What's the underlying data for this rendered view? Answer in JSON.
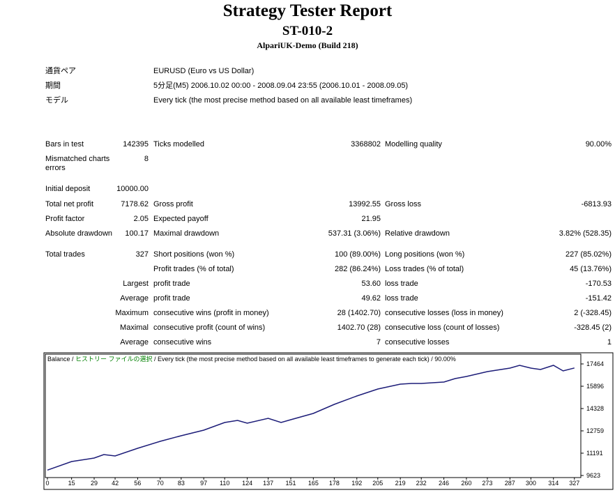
{
  "header": {
    "title": "Strategy Tester Report",
    "subtitle": "ST-010-2",
    "server": "AlpariUK-Demo (Build 218)"
  },
  "info": [
    [
      "通貨ペア",
      "EURUSD (Euro vs US Dollar)"
    ],
    [
      "期間",
      "5分足(M5) 2006.10.02 00:00 - 2008.09.04 23:55 (2006.10.01 - 2008.09.05)"
    ],
    [
      "モデル",
      "Every tick (the most precise method based on all available least timeframes)"
    ]
  ],
  "table": {
    "rows": [
      [
        "Bars in test",
        "142395",
        "Ticks modelled",
        "3368802",
        "Modelling quality",
        "90.00%"
      ],
      [
        "Mismatched charts errors",
        "8",
        null,
        null,
        null,
        null
      ],
      [
        "Initial deposit",
        "10000.00",
        null,
        null,
        null,
        null
      ],
      [
        "Total net profit",
        "7178.62",
        "Gross profit",
        "13992.55",
        "Gross loss",
        "-6813.93"
      ],
      [
        "Profit factor",
        "2.05",
        "Expected payoff",
        "21.95",
        null,
        null
      ],
      [
        "Absolute drawdown",
        "100.17",
        "Maximal drawdown",
        "537.31 (3.06%)",
        "Relative drawdown",
        "3.82% (528.35)"
      ],
      [
        "Total trades",
        "327",
        "Short positions (won %)",
        "100 (89.00%)",
        "Long positions (won %)",
        "227 (85.02%)"
      ],
      [
        null,
        null,
        "Profit trades (% of total)",
        "282 (86.24%)",
        "Loss trades (% of total)",
        "45 (13.76%)"
      ],
      [
        "Largest",
        null,
        "profit trade",
        "53.60",
        "loss trade",
        "-170.53"
      ],
      [
        "Average",
        null,
        "profit trade",
        "49.62",
        "loss trade",
        "-151.42"
      ],
      [
        "Maximum",
        null,
        "consecutive wins (profit in money)",
        "28 (1402.70)",
        "consecutive losses (loss in money)",
        "2 (-328.45)"
      ],
      [
        "Maximal",
        null,
        "consecutive profit (count of wins)",
        "1402.70 (28)",
        "consecutive loss (count of losses)",
        "-328.45 (2)"
      ],
      [
        "Average",
        null,
        "consecutive wins",
        "7",
        "consecutive losses",
        "1"
      ]
    ]
  },
  "chart_data": {
    "type": "line",
    "legend": [
      {
        "text": "Balance / ",
        "color": "#000000"
      },
      {
        "text": "ヒストリー ファイルの選択",
        "color": "#008000"
      },
      {
        "text": " / Every tick (the most precise method based on all available least timeframes to generate each tick) / 90.00%",
        "color": "#000000"
      }
    ],
    "x": [
      0,
      15,
      29,
      35,
      42,
      56,
      70,
      83,
      97,
      110,
      118,
      124,
      137,
      145,
      151,
      165,
      178,
      192,
      205,
      219,
      226,
      232,
      246,
      253,
      260,
      273,
      287,
      293,
      300,
      306,
      314,
      320,
      327
    ],
    "series": [
      {
        "name": "Balance",
        "color": "#1c1c78",
        "values": [
          10000,
          10604,
          10849,
          11094,
          10996,
          11535,
          12025,
          12417,
          12809,
          13348,
          13495,
          13299,
          13642,
          13348,
          13544,
          13985,
          14622,
          15210,
          15700,
          16043,
          16092,
          16092,
          16190,
          16435,
          16582,
          16925,
          17170,
          17366,
          17170,
          17072,
          17366,
          16974,
          17178.62
        ]
      }
    ],
    "xlim": [
      -1.3,
      331
    ],
    "ylim": [
      9476,
      18150
    ],
    "xticks": [
      0,
      15,
      29,
      42,
      56,
      70,
      83,
      97,
      110,
      124,
      137,
      151,
      165,
      178,
      192,
      205,
      219,
      232,
      246,
      260,
      273,
      287,
      300,
      314,
      327
    ],
    "yticks": [
      17464,
      15896,
      14328,
      12759,
      11191,
      9623
    ]
  }
}
